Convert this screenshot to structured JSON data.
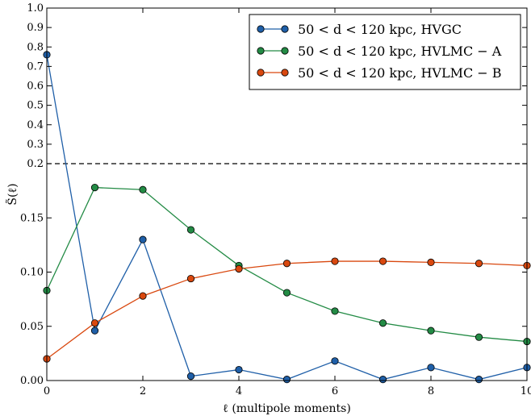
{
  "chart_data": {
    "type": "line",
    "xlabel": "ℓ (multipole moments)",
    "ylabel": "S̃(ℓ)",
    "xlim": [
      0,
      10
    ],
    "y_scale": "piecewise: linear 0–0.2 on lower section, linear 0.2–1.0 on compressed upper section",
    "x_ticks": [
      "0",
      "2",
      "4",
      "6",
      "8",
      "10"
    ],
    "y_ticks_lower": [
      "0.00",
      "0.05",
      "0.10",
      "0.15"
    ],
    "y_ticks_upper": [
      "0.2",
      "0.3",
      "0.4",
      "0.5",
      "0.6",
      "0.7",
      "0.8",
      "0.9",
      "1.0"
    ],
    "reference_line": {
      "y": 0.2,
      "style": "dashed"
    },
    "legend_position": "top-right",
    "grid": false,
    "series": [
      {
        "name": "50 < d < 120 kpc,  HVGC",
        "color": "#1f5fa8",
        "x": [
          0,
          1,
          2,
          3,
          4,
          5,
          6,
          7,
          8,
          9,
          10
        ],
        "y": [
          0.76,
          0.046,
          0.13,
          0.004,
          0.01,
          0.001,
          0.018,
          0.001,
          0.012,
          0.001,
          0.012
        ]
      },
      {
        "name": "50 < d < 120 kpc,  HVLMC − A",
        "color": "#238b45",
        "x": [
          0,
          1,
          2,
          3,
          4,
          5,
          6,
          7,
          8,
          9,
          10
        ],
        "y": [
          0.083,
          0.178,
          0.176,
          0.139,
          0.106,
          0.081,
          0.064,
          0.053,
          0.046,
          0.04,
          0.036
        ]
      },
      {
        "name": "50 < d < 120 kpc,  HVLMC − B",
        "color": "#d9480f",
        "x": [
          0,
          1,
          2,
          3,
          4,
          5,
          6,
          7,
          8,
          9,
          10
        ],
        "y": [
          0.02,
          0.053,
          0.078,
          0.094,
          0.103,
          0.108,
          0.11,
          0.11,
          0.109,
          0.108,
          0.106
        ]
      }
    ]
  }
}
